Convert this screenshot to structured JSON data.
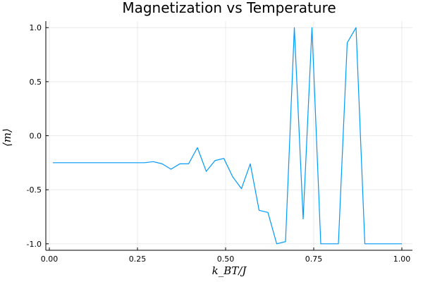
{
  "chart_data": {
    "type": "line",
    "title": "Magnetization vs Temperature",
    "xlabel": "k_BT/J",
    "ylabel": "⟨m⟩",
    "xlim": [
      -0.01,
      1.03
    ],
    "ylim": [
      -1.06,
      1.06
    ],
    "x_ticks": [
      0.0,
      0.25,
      0.5,
      0.75,
      1.0
    ],
    "x_tick_labels": [
      "0.00",
      "0.25",
      "0.50",
      "0.75",
      "1.00"
    ],
    "y_ticks": [
      -1.0,
      -0.5,
      0.0,
      0.5,
      1.0
    ],
    "y_tick_labels": [
      "-1.0",
      "-0.5",
      "0.0",
      "0.5",
      "1.0"
    ],
    "grid": true,
    "legend": "none",
    "series_color": "#009AFA",
    "x": [
      0.01,
      0.035,
      0.06,
      0.085,
      0.11,
      0.135,
      0.16,
      0.185,
      0.21,
      0.235,
      0.26,
      0.27,
      0.295,
      0.32,
      0.345,
      0.37,
      0.395,
      0.42,
      0.445,
      0.47,
      0.495,
      0.52,
      0.545,
      0.57,
      0.595,
      0.62,
      0.645,
      0.67,
      0.695,
      0.72,
      0.745,
      0.77,
      0.795,
      0.82,
      0.845,
      0.87,
      0.895,
      0.92,
      0.945,
      0.97,
      1.0
    ],
    "series": [
      {
        "values": [
          -0.25,
          -0.25,
          -0.25,
          -0.25,
          -0.25,
          -0.25,
          -0.25,
          -0.25,
          -0.25,
          -0.25,
          -0.25,
          -0.25,
          -0.24,
          -0.26,
          -0.31,
          -0.26,
          -0.26,
          -0.11,
          -0.33,
          -0.23,
          -0.21,
          -0.38,
          -0.49,
          -0.26,
          -0.69,
          -0.71,
          -1.0,
          -0.98,
          1.0,
          -0.77,
          1.0,
          -1.0,
          -1.0,
          -1.0,
          0.86,
          1.0,
          -1.0,
          -1.0,
          -1.0,
          -1.0,
          -1.0
        ]
      }
    ]
  }
}
